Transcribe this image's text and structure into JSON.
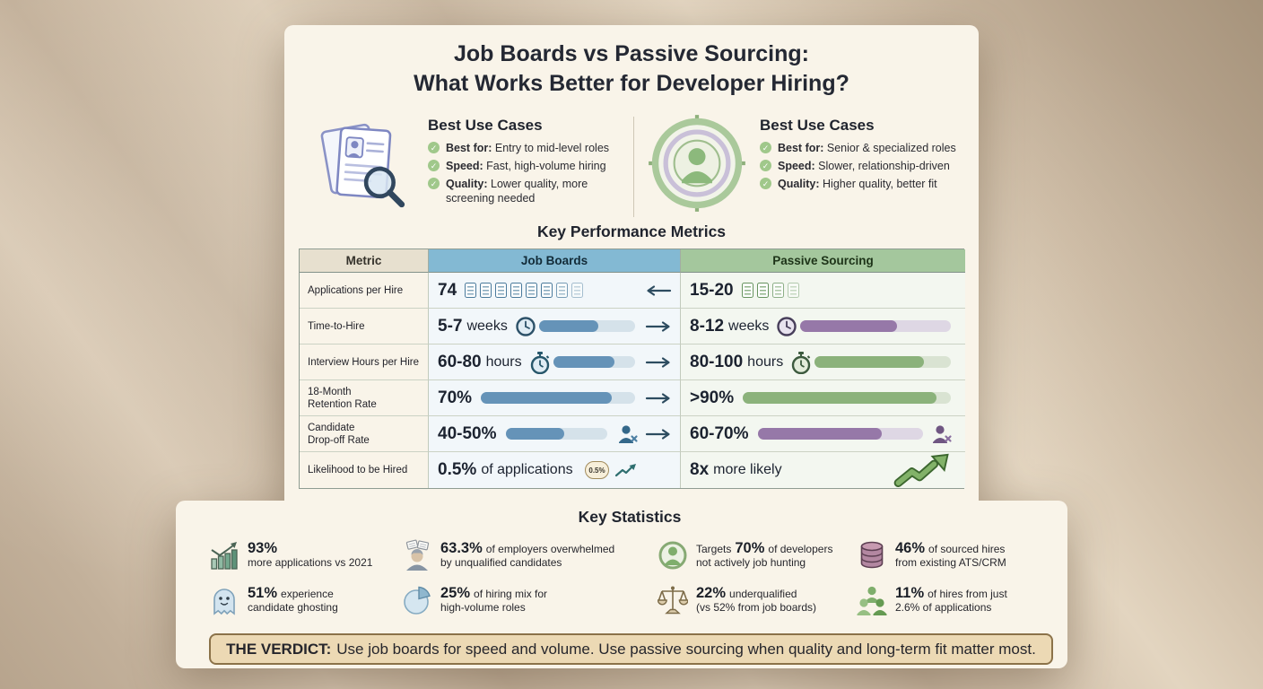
{
  "title": {
    "line1": "Job Boards vs Passive Sourcing:",
    "line2": "What Works Better for Developer Hiring?"
  },
  "use_cases": {
    "job_boards": {
      "icon": "resume-search-icon",
      "heading": "Best Use Cases",
      "items": [
        {
          "label": "Best for:",
          "text": "Entry to mid-level roles"
        },
        {
          "label": "Speed:",
          "text": "Fast, high-volume hiring"
        },
        {
          "label": "Quality:",
          "text": "Lower quality, more screening needed"
        }
      ]
    },
    "passive_sourcing": {
      "icon": "target-person-icon",
      "heading": "Best Use Cases",
      "items": [
        {
          "label": "Best for:",
          "text": "Senior & specialized roles"
        },
        {
          "label": "Speed:",
          "text": "Slower, relationship-driven"
        },
        {
          "label": "Quality:",
          "text": "Higher quality, better fit"
        }
      ]
    }
  },
  "metrics_table": {
    "title": "Key Performance Metrics",
    "headers": [
      "Metric",
      "Job Boards",
      "Passive Sourcing"
    ],
    "rows": [
      {
        "metric": "Applications per Hire",
        "arrow": "left",
        "jb": {
          "value": "74",
          "doc_icons": 8
        },
        "ps": {
          "value": "15-20",
          "doc_icons": 4
        }
      },
      {
        "metric": "Time-to-Hire",
        "arrow": "right",
        "jb": {
          "value": "5-7",
          "unit": "weeks",
          "icon": "clock-icon",
          "bar_pct": 62
        },
        "ps": {
          "value": "8-12",
          "unit": "weeks",
          "icon": "clock-icon",
          "bar_pct": 64
        }
      },
      {
        "metric": "Interview Hours per Hire",
        "arrow": "right",
        "jb": {
          "value": "60-80",
          "unit": "hours",
          "icon": "stopwatch-icon",
          "bar_pct": 75
        },
        "ps": {
          "value": "80-100",
          "unit": "hours",
          "icon": "stopwatch-icon",
          "bar_pct": 80
        }
      },
      {
        "metric": "18-Month Retention Rate",
        "arrow": "right",
        "jb": {
          "value": "70%",
          "bar_pct": 85
        },
        "ps": {
          "value": ">90%",
          "bar_pct": 93
        }
      },
      {
        "metric": "Candidate Drop-off Rate",
        "arrow": "right",
        "jb": {
          "value": "40-50%",
          "bar_pct": 58,
          "icon": "person-x-icon"
        },
        "ps": {
          "value": "60-70%",
          "bar_pct": 75,
          "icon": "person-x-icon"
        }
      },
      {
        "metric": "Likelihood to be Hired",
        "jb": {
          "value": "0.5%",
          "rest": "of applications",
          "badge": "0.5%",
          "icon": "trend-up-icon"
        },
        "ps": {
          "value": "8x",
          "rest": "more likely",
          "icon": "growth-arrow-icon"
        }
      }
    ]
  },
  "statistics": {
    "title": "Key Statistics",
    "items": [
      {
        "icon": "bar-chart-icon",
        "value": "93%",
        "rest": "",
        "line2": "more applications vs 2021"
      },
      {
        "icon": "overwhelmed-person-icon",
        "value": "63.3%",
        "rest": "of employers overwhelmed",
        "line2": "by unqualified candidates"
      },
      {
        "icon": "target-person-icon",
        "prefix": "Targets",
        "value": "70%",
        "rest": "of developers",
        "line2": "not actively job hunting"
      },
      {
        "icon": "database-icon",
        "value": "46%",
        "rest": "of sourced hires",
        "line2": "from existing ATS/CRM"
      },
      {
        "icon": "ghost-icon",
        "value": "51%",
        "rest": "experience",
        "line2": "candidate ghosting"
      },
      {
        "icon": "pie-chart-icon",
        "value": "25%",
        "rest": "of hiring mix for",
        "line2": "high-volume roles"
      },
      {
        "icon": "scales-icon",
        "value": "22%",
        "rest": "underqualified",
        "line2": "(vs 52% from job boards)"
      },
      {
        "icon": "people-group-icon",
        "value": "11%",
        "rest": "of hires from just",
        "line2": "2.6% of applications"
      }
    ]
  },
  "verdict": {
    "label": "THE VERDICT:",
    "text": "Use job boards for speed and volume. Use passive sourcing when quality and long-term fit matter most."
  },
  "colors": {
    "wall": "#c6b4a0",
    "card": "#f9f4e9",
    "job_boards_header": "#83b9d3",
    "passive_header": "#a4c79d",
    "jb_bar_fill": "#6593b8",
    "ps_bar_purple": "#9678a8",
    "ps_bar_green": "#8bb27b",
    "check_green": "#a0c88b",
    "verdict_bg": "#ecd9b4",
    "verdict_border": "#8b7249"
  },
  "chart_data": {
    "type": "table",
    "title": "Key Performance Metrics",
    "columns": [
      "Metric",
      "Job Boards",
      "Passive Sourcing"
    ],
    "rows": [
      [
        "Applications per Hire",
        "74",
        "15-20"
      ],
      [
        "Time-to-Hire",
        "5-7 weeks",
        "8-12 weeks"
      ],
      [
        "Interview Hours per Hire",
        "60-80 hours",
        "80-100 hours"
      ],
      [
        "18-Month Retention Rate",
        "70%",
        ">90%"
      ],
      [
        "Candidate Drop-off Rate",
        "40-50%",
        "60-70%"
      ],
      [
        "Likelihood to be Hired",
        "0.5% of applications",
        "8x more likely"
      ]
    ]
  }
}
